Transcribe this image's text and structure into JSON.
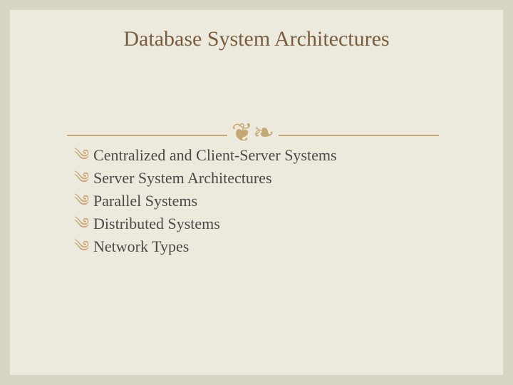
{
  "colors": {
    "slide_background": "#eceadd",
    "outer_border": "#d7d4c2",
    "title_text": "#7a5c3e",
    "divider_line": "#c6a873",
    "flourish": "#c6a873",
    "bullet_glyph": "#c6a873",
    "body_text": "#4a4a4a"
  },
  "title": "Database System Architectures",
  "flourish_glyph": "❦❧",
  "bullet_glyph": "༄",
  "bullets": [
    "Centralized and Client-Server Systems",
    "Server System Architectures",
    "Parallel Systems",
    "Distributed Systems",
    "Network Types"
  ]
}
